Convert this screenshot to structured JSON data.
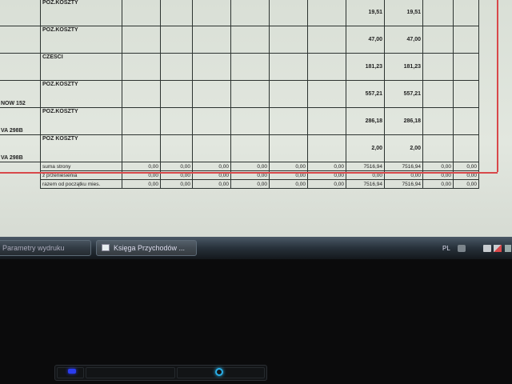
{
  "table": {
    "rows": [
      {
        "left": "",
        "desc": "POZ.KOSZTY",
        "v1": "19,51",
        "v2": "19,51"
      },
      {
        "left": "",
        "desc": "POZ.KOSZTY",
        "v1": "47,00",
        "v2": "47,00"
      },
      {
        "left": "",
        "desc": "CZESCI",
        "v1": "181,23",
        "v2": "181,23"
      },
      {
        "left": "NOW 152",
        "desc": "POZ.KOSZTY",
        "v1": "557,21",
        "v2": "557,21"
      },
      {
        "left": "VA 298B",
        "desc": "POZ.KOSZTY",
        "v1": "286,18",
        "v2": "286,18"
      },
      {
        "left": "VA 298B",
        "desc": "POZ KOSZTY",
        "v1": "2,00",
        "v2": "2,00"
      }
    ],
    "summary": [
      {
        "label": "suma strony",
        "values": [
          "0,00",
          "0,00",
          "0,00",
          "0,00",
          "0,00",
          "0,00",
          "7516,94",
          "7516,94",
          "0,00",
          "0,00"
        ]
      },
      {
        "label": "z przeniesienia",
        "values": [
          "0,00",
          "0,00",
          "0,00",
          "0,00",
          "0,00",
          "0,00",
          "0,00",
          "0,00",
          "0,00",
          "0,00"
        ]
      },
      {
        "label": "razem od początku mies.",
        "values": [
          "0,00",
          "0,00",
          "0,00",
          "0,00",
          "0,00",
          "0,00",
          "7516,94",
          "7516,94",
          "0,00",
          "0,00"
        ]
      }
    ]
  },
  "colors": {
    "margin_line": "#d8484a",
    "power_led": "#2ab0e8",
    "wifi_led": "#2a3cf0"
  },
  "taskbar": {
    "tasks": [
      {
        "label": "Parametry wydruku"
      },
      {
        "label": "Księga Przychodów ..."
      }
    ],
    "language": "PL"
  }
}
